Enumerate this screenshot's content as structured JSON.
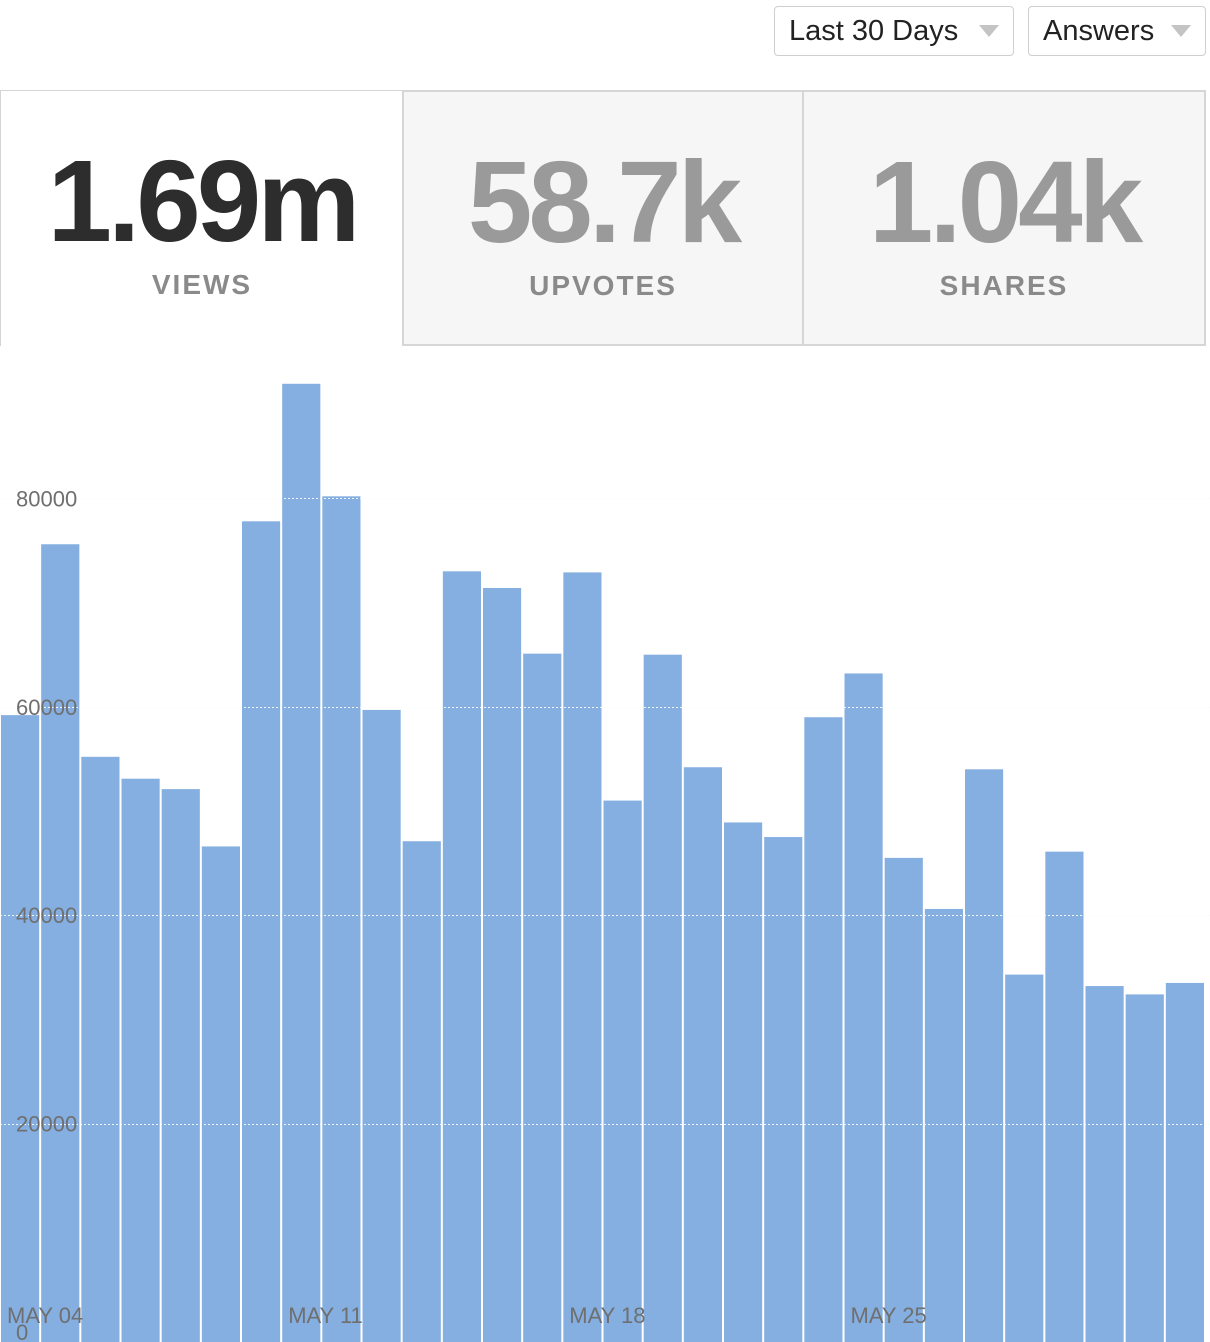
{
  "filters": {
    "period": "Last 30 Days",
    "content_type": "Answers"
  },
  "stats": [
    {
      "value": "1.69m",
      "label": "VIEWS",
      "active": true
    },
    {
      "value": "58.7k",
      "label": "UPVOTES",
      "active": false
    },
    {
      "value": "1.04k",
      "label": "SHARES",
      "active": false
    }
  ],
  "colors": {
    "bar": "#85afe0",
    "active_value": "#2d2d2d",
    "inactive_value": "#9a9a9a",
    "label": "#8a8a8a"
  },
  "chart_data": {
    "type": "bar",
    "series_name": "",
    "x_tick_labels": [
      "MAY 04",
      "MAY 11",
      "MAY 18",
      "MAY 25"
    ],
    "x_tick_indices": [
      0,
      7,
      14,
      21
    ],
    "y_ticks": [
      0,
      20000,
      40000,
      60000,
      80000
    ],
    "ylim": [
      0,
      96000
    ],
    "values": [
      59200,
      75600,
      55200,
      53100,
      52100,
      46600,
      77800,
      91000,
      80200,
      59700,
      47100,
      73000,
      71400,
      65100,
      72900,
      51000,
      65000,
      54200,
      48900,
      47500,
      59000,
      63200,
      45500,
      40600,
      54000,
      34300,
      46100,
      33200,
      32400,
      33500
    ],
    "grid": true,
    "legend": "none"
  }
}
